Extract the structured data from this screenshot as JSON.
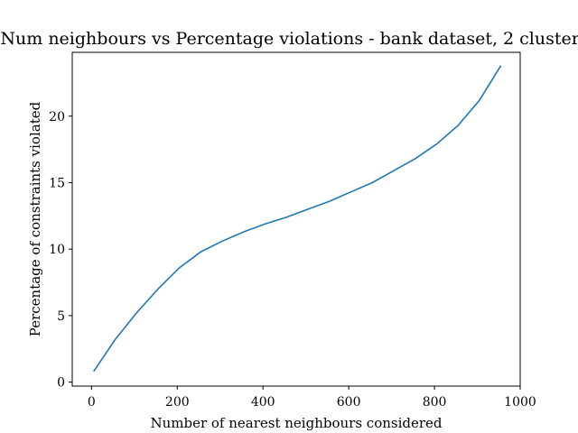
{
  "chart_data": {
    "type": "line",
    "title": "Num neighbours vs Percentage violations - bank dataset, 2 clusters",
    "xlabel": "Number of nearest neighbours considered",
    "ylabel": "Percentage of constraints violated",
    "xlim": [
      -45,
      1000
    ],
    "ylim": [
      -0.3,
      24.8
    ],
    "xticks": [
      0,
      200,
      400,
      600,
      800,
      1000
    ],
    "yticks": [
      0,
      5,
      10,
      15,
      20
    ],
    "grid": false,
    "series": [
      {
        "color": "#1f77b4",
        "x": [
          5,
          55,
          105,
          155,
          205,
          255,
          305,
          355,
          405,
          455,
          505,
          555,
          605,
          655,
          705,
          755,
          805,
          855,
          905,
          955
        ],
        "y": [
          0.8,
          3.2,
          5.2,
          7.0,
          8.6,
          9.8,
          10.6,
          11.3,
          11.9,
          12.4,
          13.0,
          13.6,
          14.3,
          15.0,
          15.9,
          16.8,
          17.9,
          19.3,
          21.2,
          23.8
        ]
      }
    ]
  }
}
